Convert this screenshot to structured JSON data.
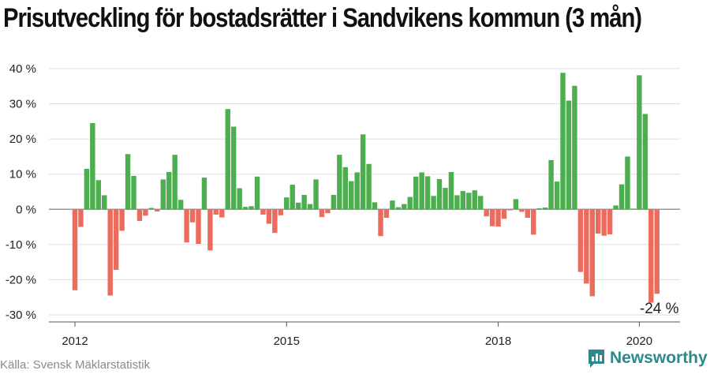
{
  "chart_data": {
    "type": "bar",
    "title": "Prisutveckling för bostadsrätter i Sandvikens kommun (3 mån)",
    "ylabel": "",
    "xlabel": "",
    "ylim": [
      -32,
      42
    ],
    "yticks": [
      -30,
      -20,
      -10,
      0,
      10,
      20,
      30,
      40
    ],
    "ytick_suffix": " %",
    "xticks": [
      {
        "label": "2012",
        "at": "2012-01"
      },
      {
        "label": "2015",
        "at": "2015-01"
      },
      {
        "label": "2018",
        "at": "2018-01"
      },
      {
        "label": "2020",
        "at": "2020-01"
      }
    ],
    "x_start": "2012-01",
    "x_end": "2020-09",
    "grid": true,
    "positive_color": "#4cae4f",
    "negative_color": "#ec6b5d",
    "x": [
      "2012-01",
      "2012-02",
      "2012-03",
      "2012-04",
      "2012-05",
      "2012-06",
      "2012-07",
      "2012-08",
      "2012-09",
      "2012-10",
      "2012-11",
      "2012-12",
      "2013-01",
      "2013-02",
      "2013-03",
      "2013-04",
      "2013-05",
      "2013-06",
      "2013-07",
      "2013-08",
      "2013-09",
      "2013-10",
      "2013-11",
      "2013-12",
      "2014-01",
      "2014-02",
      "2014-03",
      "2014-04",
      "2014-05",
      "2014-06",
      "2014-07",
      "2014-08",
      "2014-09",
      "2014-10",
      "2014-11",
      "2014-12",
      "2015-01",
      "2015-02",
      "2015-03",
      "2015-04",
      "2015-05",
      "2015-06",
      "2015-07",
      "2015-08",
      "2015-09",
      "2015-10",
      "2015-11",
      "2015-12",
      "2016-01",
      "2016-02",
      "2016-03",
      "2016-04",
      "2016-05",
      "2016-06",
      "2016-07",
      "2016-08",
      "2016-09",
      "2016-10",
      "2016-11",
      "2016-12",
      "2017-01",
      "2017-02",
      "2017-03",
      "2017-04",
      "2017-05",
      "2017-06",
      "2017-07",
      "2017-08",
      "2017-09",
      "2017-10",
      "2017-11",
      "2017-12",
      "2018-01",
      "2018-02",
      "2018-03",
      "2018-04",
      "2018-05",
      "2018-06",
      "2018-07",
      "2018-08",
      "2018-09",
      "2018-10",
      "2018-11",
      "2018-12",
      "2019-01",
      "2019-02",
      "2019-03",
      "2019-04",
      "2019-05",
      "2019-06",
      "2019-07",
      "2019-08",
      "2019-09",
      "2019-10",
      "2019-11",
      "2019-12",
      "2020-01",
      "2020-02",
      "2020-03",
      "2020-04"
    ],
    "values": [
      -23,
      -5,
      11.5,
      24.5,
      8.3,
      4,
      -24.5,
      -17.2,
      -6.1,
      15.7,
      9.5,
      -3.3,
      -1.8,
      0.4,
      -0.6,
      8.5,
      10.6,
      15.5,
      2.7,
      -9.4,
      -3.7,
      -9.8,
      9,
      -11.7,
      -1.5,
      -2.3,
      28.5,
      23.5,
      6,
      0.7,
      0.9,
      9.3,
      -1.5,
      -4.1,
      -6.7,
      -1.7,
      3.4,
      7,
      1.9,
      4.1,
      1.5,
      8.5,
      -2.2,
      -1.1,
      4.1,
      15.5,
      12,
      8,
      10.5,
      21.3,
      12.9,
      2,
      -7.6,
      -2.4,
      2.5,
      0.6,
      1.5,
      3.5,
      9.3,
      10.5,
      9.4,
      3.8,
      8.6,
      6.1,
      10.6,
      4,
      5.2,
      4.7,
      5.4,
      3.8,
      -2,
      -4.8,
      -4.9,
      -2.7,
      -0.3,
      2.9,
      -0.7,
      -2.4,
      -7.2,
      0.3,
      0.5,
      14,
      7.9,
      38.8,
      30.9,
      35.1,
      -17.8,
      -21.1,
      -24.7,
      -6.9,
      -7.5,
      -7.1,
      1.1,
      7.1,
      15,
      0.2,
      38.1,
      27.1,
      -26.5,
      -24
    ]
  },
  "annotation": {
    "label": "-24 %",
    "at": "2020-04"
  },
  "footer": {
    "source": "Källa: Svensk Mäklarstatistik",
    "brand": "Newsworthy"
  },
  "colors": {
    "brand": "#2a8a8c"
  }
}
